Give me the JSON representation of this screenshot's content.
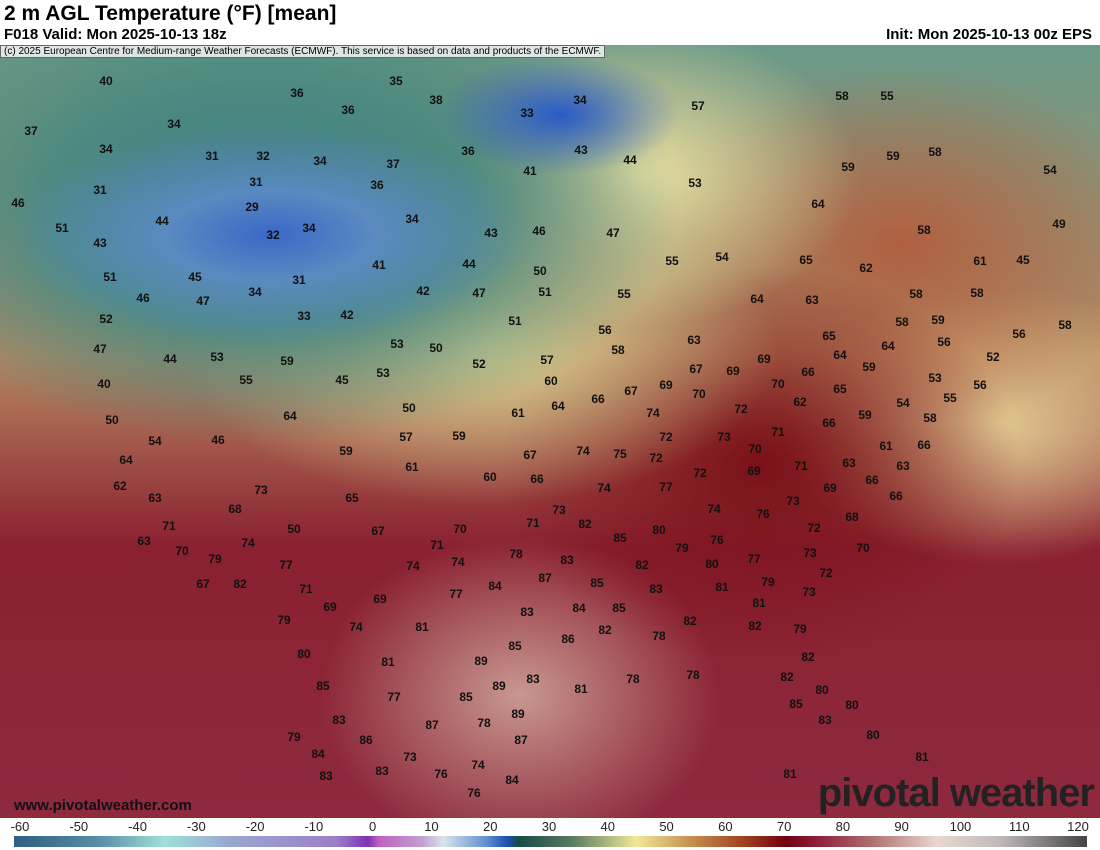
{
  "header": {
    "title": "2 m AGL Temperature (°F) [mean]",
    "valid": "F018 Valid: Mon 2025-10-13 18z",
    "init": "Init: Mon 2025-10-13 00z EPS"
  },
  "map": {
    "copyright": "(c) 2025 European Centre for Medium-range Weather Forecasts (ECMWF). This service is based on data and products of the ECMWF.",
    "website": "www.pivotalweather.com",
    "brand": "pivotal weather",
    "temperature_labels": [
      "40",
      "37",
      "34",
      "36",
      "35",
      "38",
      "36",
      "34",
      "33",
      "57",
      "58",
      "55",
      "34",
      "31",
      "32",
      "34",
      "37",
      "36",
      "43",
      "44",
      "41",
      "59",
      "58",
      "59",
      "54",
      "31",
      "31",
      "36",
      "53",
      "46",
      "29",
      "44",
      "34",
      "34",
      "32",
      "43",
      "46",
      "47",
      "64",
      "58",
      "49",
      "51",
      "43",
      "51",
      "45",
      "31",
      "41",
      "44",
      "50",
      "55",
      "54",
      "65",
      "62",
      "61",
      "45",
      "46",
      "47",
      "34",
      "42",
      "47",
      "51",
      "55",
      "64",
      "63",
      "58",
      "58",
      "52",
      "33",
      "42",
      "51",
      "56",
      "58",
      "59",
      "56",
      "58",
      "47",
      "44",
      "53",
      "59",
      "53",
      "50",
      "52",
      "57",
      "58",
      "63",
      "69",
      "65",
      "64",
      "56",
      "52",
      "40",
      "55",
      "45",
      "53",
      "60",
      "67",
      "69",
      "67",
      "69",
      "70",
      "66",
      "64",
      "59",
      "65",
      "53",
      "56",
      "70",
      "50",
      "50",
      "61",
      "64",
      "66",
      "74",
      "72",
      "62",
      "59",
      "54",
      "55",
      "58",
      "54",
      "46",
      "64",
      "57",
      "59",
      "74",
      "75",
      "72",
      "73",
      "71",
      "66",
      "59",
      "61",
      "60",
      "67",
      "66",
      "72",
      "70",
      "69",
      "71",
      "63",
      "61",
      "63",
      "66",
      "64",
      "62",
      "63",
      "73",
      "68",
      "65",
      "74",
      "77",
      "72",
      "69",
      "66",
      "66",
      "73",
      "71",
      "63",
      "70",
      "74",
      "50",
      "67",
      "71",
      "70",
      "71",
      "73",
      "82",
      "85",
      "80",
      "74",
      "76",
      "72",
      "68",
      "79",
      "77",
      "74",
      "74",
      "78",
      "83",
      "82",
      "79",
      "76",
      "77",
      "80",
      "73",
      "70",
      "67",
      "82",
      "71",
      "77",
      "84",
      "87",
      "85",
      "83",
      "81",
      "79",
      "72",
      "69",
      "69",
      "83",
      "84",
      "85",
      "81",
      "73",
      "79",
      "74",
      "81",
      "86",
      "82",
      "78",
      "82",
      "82",
      "79",
      "80",
      "81",
      "89",
      "85",
      "85",
      "77",
      "85",
      "89",
      "83",
      "81",
      "78",
      "78",
      "82",
      "82",
      "80",
      "85",
      "80",
      "83",
      "87",
      "78",
      "89",
      "83",
      "79",
      "86",
      "87",
      "80",
      "84",
      "73",
      "74",
      "81",
      "83",
      "83",
      "76",
      "84",
      "81",
      "76"
    ]
  },
  "colorbar": {
    "unit": "°F",
    "ticks": [
      "-60",
      "-50",
      "-40",
      "-30",
      "-20",
      "-10",
      "0",
      "10",
      "20",
      "30",
      "40",
      "50",
      "60",
      "70",
      "80",
      "90",
      "100",
      "110",
      "120"
    ]
  }
}
